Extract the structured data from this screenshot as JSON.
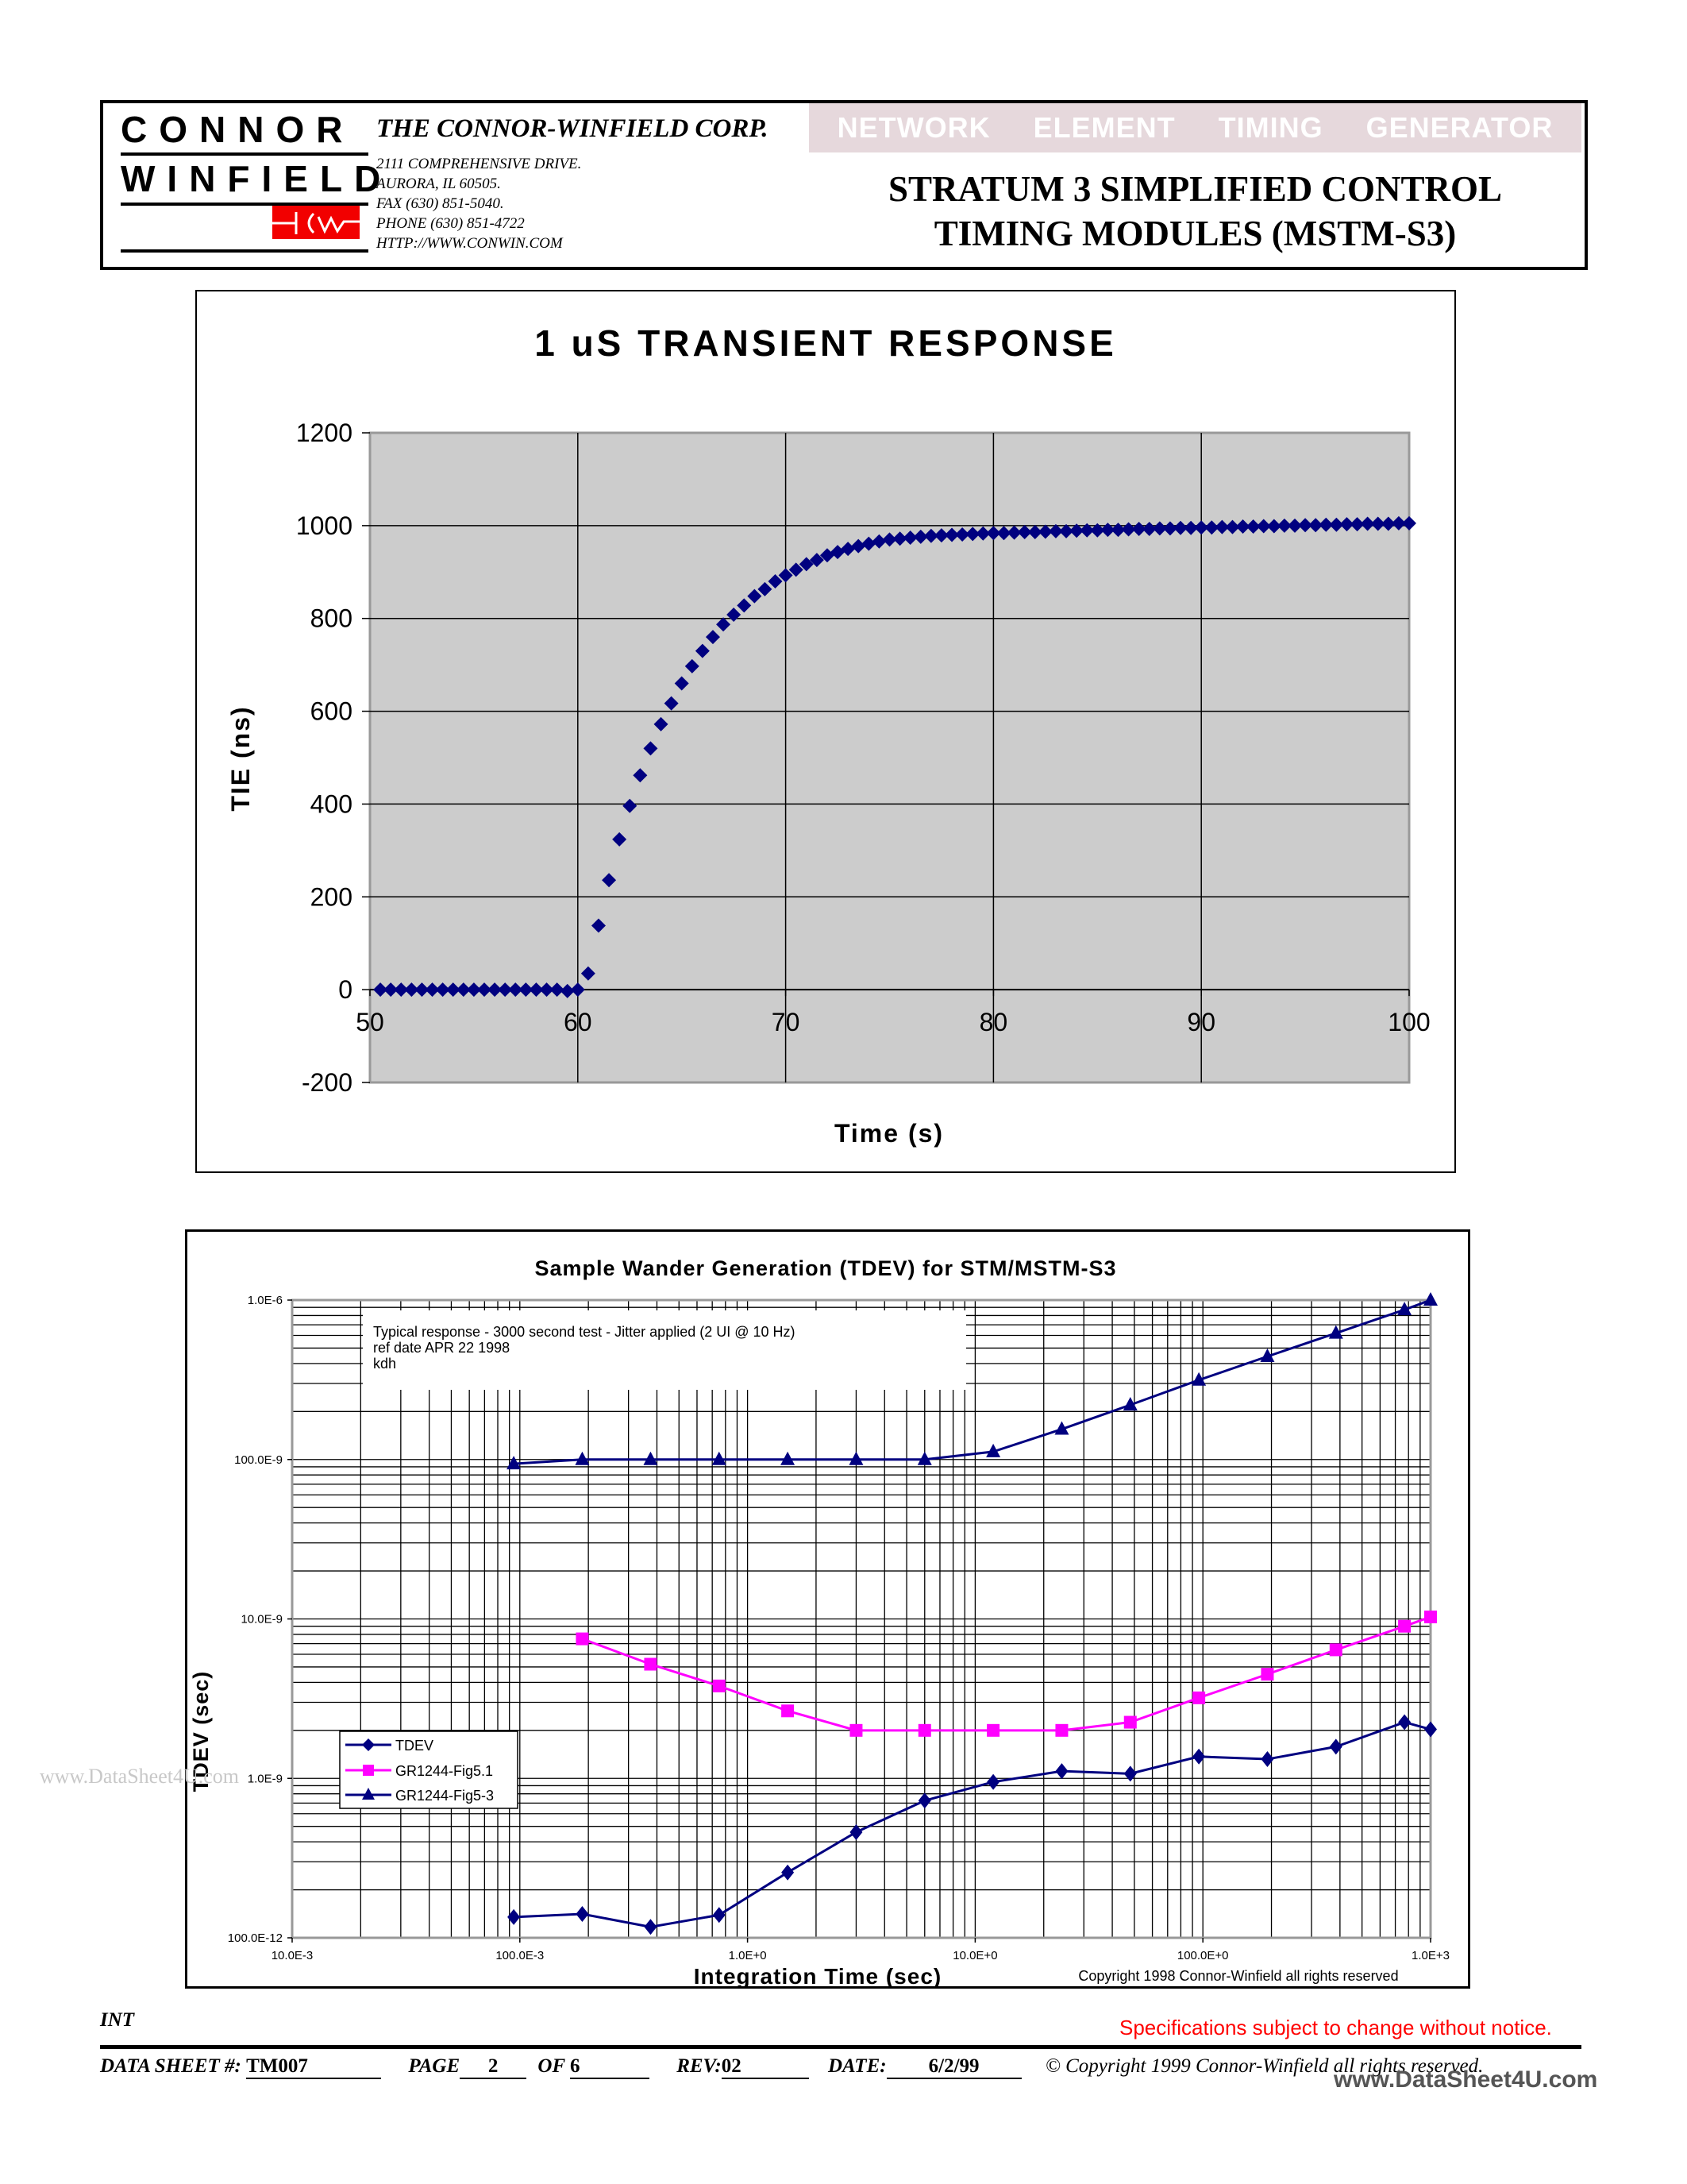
{
  "header": {
    "logo": {
      "line1": "CONNOR",
      "line2": "WINFIELD",
      "mark": "HCW"
    },
    "company": "THE CONNOR-WINFIELD CORP.",
    "address": [
      "2111 COMPREHENSIVE DRIVE.",
      "AURORA, IL 60505.",
      "FAX   (630) 851-5040.",
      "PHONE  (630) 851-4722",
      "HTTP://WWW.CONWIN.COM"
    ],
    "banner": "NETWORK  ELEMENT  TIMING  GENERATOR",
    "title_line1": "STRATUM 3 SIMPLIFIED CONTROL",
    "title_line2": "TIMING MODULES (MSTM-S3)",
    "colors": {
      "banner_bg": "#e6d8dc",
      "logo_red": "#f20000"
    }
  },
  "chart_data": [
    {
      "type": "scatter",
      "title": "1 uS TRANSIENT RESPONSE",
      "xlabel": "Time (s)",
      "ylabel": "TIE (ns)",
      "xlim": [
        50,
        100
      ],
      "ylim": [
        -200,
        1200
      ],
      "xticks": [
        50,
        60,
        70,
        80,
        90,
        100
      ],
      "yticks": [
        -200,
        0,
        200,
        400,
        600,
        800,
        1000,
        1200
      ],
      "grid": true,
      "plot_bg": "#cccccc",
      "marker": "diamond",
      "color": "#000080",
      "x": [
        50.5,
        51,
        51.5,
        52,
        52.5,
        53,
        53.5,
        54,
        54.5,
        55,
        55.5,
        56,
        56.5,
        57,
        57.5,
        58,
        58.5,
        59,
        59.5,
        60,
        60.5,
        61,
        61.5,
        62,
        62.5,
        63,
        63.5,
        64,
        64.5,
        65,
        65.5,
        66,
        66.5,
        67,
        67.5,
        68,
        68.5,
        69,
        69.5,
        70,
        70.5,
        71,
        71.5,
        72,
        72.5,
        73,
        73.5,
        74,
        74.5,
        75,
        75.5,
        76,
        76.5,
        77,
        77.5,
        78,
        78.5,
        79,
        79.5,
        80,
        80.5,
        81,
        81.5,
        82,
        82.5,
        83,
        83.5,
        84,
        84.5,
        85,
        85.5,
        86,
        86.5,
        87,
        87.5,
        88,
        88.5,
        89,
        89.5,
        90,
        90.5,
        91,
        91.5,
        92,
        92.5,
        93,
        93.5,
        94,
        94.5,
        95,
        95.5,
        96,
        96.5,
        97,
        97.5,
        98,
        98.5,
        99,
        99.5,
        100
      ],
      "y": [
        0,
        0,
        0,
        0,
        0,
        0,
        0,
        0,
        0,
        0,
        0,
        0,
        0,
        0,
        0,
        0,
        0,
        0,
        -3,
        0,
        35,
        138,
        236,
        324,
        396,
        462,
        520,
        572,
        617,
        660,
        697,
        730,
        760,
        787,
        808,
        828,
        848,
        863,
        880,
        893,
        905,
        917,
        926,
        936,
        943,
        950,
        956,
        961,
        966,
        970,
        972,
        974,
        976,
        978,
        979,
        980,
        981,
        982,
        983,
        984,
        984,
        985,
        986,
        986,
        987,
        988,
        988,
        989,
        990,
        990,
        991,
        991,
        992,
        993,
        993,
        994,
        994,
        995,
        995,
        996,
        996,
        997,
        997,
        998,
        998,
        999,
        999,
        1000,
        1000,
        1001,
        1001,
        1002,
        1002,
        1003,
        1003,
        1004,
        1004,
        1004,
        1005,
        1005
      ]
    },
    {
      "type": "line",
      "title": "Sample Wander Generation (TDEV) for STM/MSTM-S3",
      "xlabel": "Integration Time (sec)",
      "ylabel": "TDEV (sec)",
      "xscale": "log",
      "yscale": "log",
      "xlim": [
        0.01,
        1000
      ],
      "ylim": [
        1e-10,
        1e-06
      ],
      "xtick_labels": [
        "10.0E-3",
        "100.0E-3",
        "1.0E+0",
        "10.0E+0",
        "100.0E+0",
        "1.0E+3"
      ],
      "ytick_labels": [
        "100.0E-12",
        "1.0E-9",
        "10.0E-9",
        "100.0E-9",
        "1.0E-6"
      ],
      "grid": true,
      "legend_position": "left-middle",
      "annotation": [
        "Typical response - 3000 second test - Jitter applied (2 UI @ 10 Hz)",
        "ref date APR 22 1998",
        "kdh"
      ],
      "copyright_note": "Copyright 1998 Connor-Winfield all rights reserved",
      "series": [
        {
          "name": "TDEV",
          "color": "#000080",
          "marker": "diamond",
          "x": [
            0.094,
            0.188,
            0.375,
            0.75,
            1.5,
            3,
            6,
            12,
            24,
            48,
            96,
            192,
            384,
            768,
            1000
          ],
          "values": [
            1.35e-10,
            1.41e-10,
            1.17e-10,
            1.39e-10,
            2.57e-10,
            4.6e-10,
            7.25e-10,
            9.5e-10,
            1.11e-09,
            1.07e-09,
            1.37e-09,
            1.32e-09,
            1.58e-09,
            2.25e-09,
            2.03e-09
          ]
        },
        {
          "name": "GR1244-Fig5.1",
          "color": "#ff00ff",
          "marker": "square",
          "x": [
            0.188,
            0.375,
            0.75,
            1.5,
            3,
            6,
            12,
            24,
            48,
            96,
            192,
            384,
            768,
            1000
          ],
          "values": [
            7.5e-09,
            5.2e-09,
            3.8e-09,
            2.65e-09,
            2e-09,
            2e-09,
            2e-09,
            2e-09,
            2.25e-09,
            3.2e-09,
            4.5e-09,
            6.4e-09,
            9e-09,
            1.03e-08
          ]
        },
        {
          "name": "GR1244-Fig5-3",
          "color": "#000080",
          "marker": "triangle",
          "x": [
            0.094,
            0.188,
            0.375,
            0.75,
            1.5,
            3,
            6,
            12,
            24,
            48,
            96,
            192,
            384,
            768,
            1000
          ],
          "values": [
            9.4e-08,
            1e-07,
            1e-07,
            1e-07,
            1e-07,
            1e-07,
            1e-07,
            1.12e-07,
            1.55e-07,
            2.2e-07,
            3.15e-07,
            4.43e-07,
            6.2e-07,
            8.7e-07,
            1e-06
          ]
        }
      ]
    }
  ],
  "footer": {
    "left_code": "INT",
    "notice": "Specifications subject to change without notice.",
    "notice_color": "#ff0000",
    "data_sheet_label": "DATA SHEET  #:",
    "data_sheet_value": "TM007",
    "page_label": "PAGE",
    "page_value": "2",
    "of_label": "OF",
    "of_value": "6",
    "rev_label": "REV:",
    "rev_value": "02",
    "date_label": "DATE:",
    "date_value": "6/2/99",
    "copyright": "© Copyright 1999 Connor-Winfield all rights reserved.",
    "watermark_left": "www.DataSheet4U.com",
    "watermark_right": "www.DataSheet4U.com"
  }
}
